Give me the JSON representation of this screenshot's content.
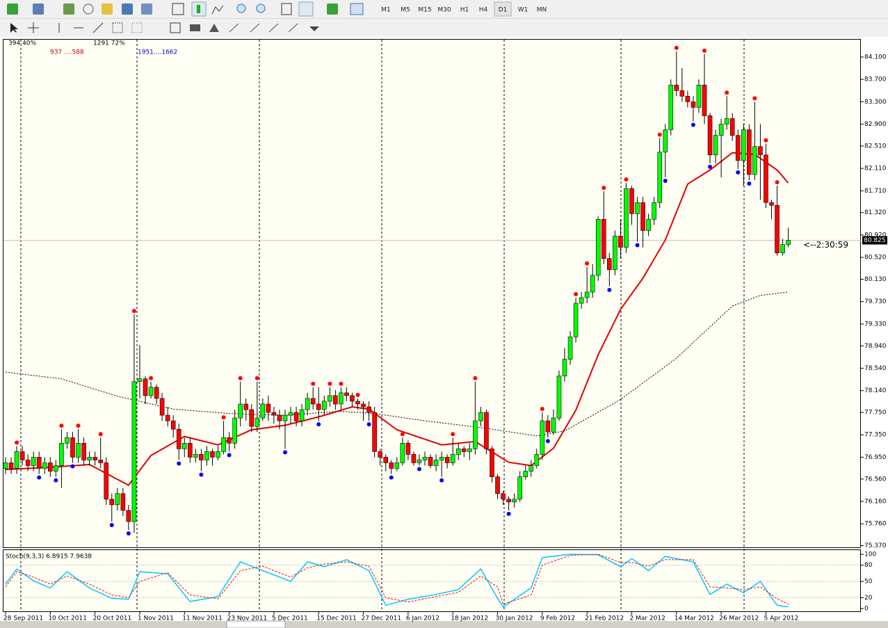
{
  "toolbar": {
    "timeframes": [
      "M1",
      "M5",
      "M15",
      "M30",
      "H1",
      "H4",
      "D1",
      "W1",
      "MN"
    ],
    "active": 6
  },
  "chart_data": [
    {
      "type": "candlestick",
      "info": [
        {
          "text": "394 40%",
          "color": "#000000"
        },
        {
          "text": "937 ....588",
          "color": "#cc0000"
        },
        {
          "text": "1291 72%",
          "color": "#000000"
        },
        {
          "text": "1951....1662",
          "color": "#0000cc"
        }
      ],
      "categories": [
        "28 Sep 2011",
        null,
        null,
        null,
        null,
        null,
        null,
        null,
        "10 Oct 2011",
        null,
        null,
        null,
        null,
        null,
        null,
        null,
        "20 Oct 2011",
        null,
        null,
        null,
        null,
        null,
        null,
        null,
        "1 Nov 2011",
        null,
        null,
        null,
        null,
        null,
        null,
        null,
        "11 Nov 2011",
        null,
        null,
        null,
        null,
        null,
        null,
        null,
        "23 Nov 2011",
        null,
        null,
        null,
        null,
        null,
        null,
        null,
        "5 Dec 2011",
        null,
        null,
        null,
        null,
        null,
        null,
        null,
        "15 Dec 2011",
        null,
        null,
        null,
        null,
        null,
        null,
        null,
        "27 Dec 2011",
        null,
        null,
        null,
        null,
        null,
        null,
        null,
        "6 Jan 2012",
        null,
        null,
        null,
        null,
        null,
        null,
        null,
        "18 Jan 2012",
        null,
        null,
        null,
        null,
        null,
        null,
        null,
        "30 Jan 2012",
        null,
        null,
        null,
        null,
        null,
        null,
        null,
        "9 Feb 2012",
        null,
        null,
        null,
        null,
        null,
        null,
        null,
        "21 Feb 2012",
        null,
        null,
        null,
        null,
        null,
        null,
        null,
        "2 Mar 2012",
        null,
        null,
        null,
        null,
        null,
        null,
        null,
        "14 Mar 2012",
        null,
        null,
        null,
        null,
        null,
        null,
        null,
        "26 Mar 2012",
        null,
        null,
        null,
        null,
        null,
        null,
        null,
        "5 Apr 2012",
        null,
        null,
        null,
        null
      ],
      "open": [
        76.75,
        76.85,
        76.75,
        77.05,
        76.9,
        76.8,
        76.95,
        76.75,
        76.85,
        76.7,
        76.8,
        77.2,
        77.3,
        76.95,
        77.2,
        76.9,
        76.95,
        76.9,
        76.85,
        76.2,
        76.1,
        76.3,
        76.0,
        75.8,
        78.3,
        78.35,
        78.05,
        78.2,
        78.0,
        77.7,
        77.6,
        77.45,
        77.1,
        77.2,
        76.95,
        77.0,
        76.9,
        77.05,
        76.95,
        77.05,
        77.3,
        77.2,
        77.65,
        77.9,
        77.8,
        77.5,
        77.65,
        77.9,
        77.75,
        77.7,
        77.6,
        77.7,
        77.75,
        77.6,
        77.8,
        78.0,
        77.9,
        77.8,
        77.95,
        78.05,
        77.9,
        78.1,
        78.05,
        77.95,
        77.9,
        77.85,
        77.75,
        77.05,
        76.95,
        76.85,
        76.75,
        76.85,
        77.2,
        77.0,
        76.85,
        76.9,
        76.95,
        76.8,
        76.9,
        76.95,
        76.85,
        77.0,
        77.1,
        77.05,
        77.1,
        77.6,
        77.75,
        77.1,
        76.6,
        76.3,
        76.2,
        76.15,
        76.2,
        76.6,
        76.7,
        76.8,
        77.0,
        77.6,
        77.4,
        77.65,
        78.4,
        78.7,
        79.1,
        79.7,
        79.8,
        79.9,
        80.2,
        81.2,
        80.5,
        80.3,
        80.9,
        80.7,
        81.75,
        81.3,
        81.5,
        81.0,
        81.2,
        81.5,
        82.4,
        82.8,
        83.6,
        83.5,
        83.4,
        83.3,
        83.2,
        83.6,
        83.05,
        82.35,
        82.7,
        82.9,
        83.0,
        82.7,
        82.25,
        82.8,
        82.0,
        82.5,
        82.35,
        81.5,
        81.45,
        80.6,
        80.75
      ],
      "high": [
        76.95,
        76.95,
        77.15,
        77.15,
        77.0,
        77.05,
        77.05,
        76.95,
        76.95,
        76.9,
        77.45,
        77.4,
        77.4,
        77.45,
        77.3,
        77.05,
        77.05,
        77.3,
        76.95,
        76.3,
        76.4,
        76.4,
        76.1,
        79.5,
        78.95,
        78.4,
        78.3,
        78.25,
        78.1,
        77.85,
        77.7,
        77.55,
        77.3,
        77.3,
        77.1,
        77.1,
        77.15,
        77.1,
        77.15,
        77.6,
        77.4,
        77.8,
        78.3,
        78.0,
        77.9,
        78.3,
        78.0,
        78.05,
        77.85,
        77.8,
        77.8,
        77.85,
        77.85,
        77.9,
        78.1,
        78.2,
        78.2,
        78.05,
        78.2,
        78.15,
        78.2,
        78.2,
        78.1,
        78.0,
        77.95,
        77.95,
        77.85,
        77.1,
        77.0,
        76.9,
        76.95,
        77.3,
        77.25,
        77.05,
        77.0,
        77.05,
        77.0,
        77.0,
        77.05,
        77.0,
        77.3,
        77.2,
        77.15,
        77.2,
        78.3,
        77.85,
        77.8,
        77.15,
        76.65,
        76.35,
        76.25,
        76.3,
        76.7,
        76.8,
        76.9,
        77.1,
        77.75,
        77.7,
        77.8,
        78.5,
        78.9,
        79.2,
        79.8,
        79.9,
        80.35,
        80.4,
        81.25,
        81.7,
        80.6,
        81.0,
        81.2,
        81.85,
        81.8,
        81.6,
        81.6,
        81.3,
        81.6,
        82.65,
        82.9,
        83.7,
        84.2,
        83.9,
        83.5,
        83.4,
        83.7,
        84.15,
        83.1,
        82.8,
        83.0,
        83.4,
        83.1,
        82.8,
        82.9,
        82.9,
        83.3,
        82.9,
        82.55,
        81.55,
        81.8,
        80.85,
        81.05
      ],
      "low": [
        76.65,
        76.65,
        76.65,
        76.8,
        76.7,
        76.7,
        76.65,
        76.65,
        76.6,
        76.6,
        76.4,
        77.1,
        76.85,
        76.85,
        76.8,
        76.8,
        76.8,
        76.75,
        76.1,
        75.8,
        76.0,
        75.9,
        75.65,
        75.6,
        78.0,
        77.9,
        78.0,
        77.9,
        77.6,
        77.5,
        77.3,
        76.9,
        76.95,
        76.85,
        76.85,
        76.7,
        76.8,
        76.8,
        76.9,
        77.0,
        77.05,
        77.1,
        77.5,
        77.6,
        77.4,
        77.4,
        77.6,
        77.6,
        77.55,
        77.45,
        77.1,
        77.55,
        77.5,
        77.5,
        77.7,
        77.8,
        77.6,
        77.7,
        77.85,
        77.8,
        77.8,
        77.95,
        77.85,
        77.8,
        77.6,
        77.6,
        76.95,
        76.8,
        76.7,
        76.65,
        76.7,
        76.8,
        76.9,
        76.8,
        76.8,
        76.8,
        76.75,
        76.7,
        76.6,
        76.75,
        76.8,
        76.9,
        76.95,
        76.9,
        77.0,
        77.5,
        77.0,
        76.5,
        76.2,
        76.1,
        76.0,
        76.05,
        76.15,
        76.55,
        76.6,
        76.75,
        76.9,
        77.3,
        77.35,
        77.6,
        78.3,
        78.6,
        79.0,
        79.6,
        79.7,
        79.8,
        80.1,
        80.4,
        80.0,
        80.2,
        80.5,
        80.6,
        81.1,
        80.8,
        80.7,
        80.9,
        81.1,
        81.4,
        81.95,
        82.7,
        83.4,
        83.3,
        83.2,
        82.95,
        83.1,
        82.9,
        82.2,
        82.2,
        81.95,
        82.8,
        82.6,
        82.1,
        81.8,
        81.9,
        81.9,
        81.55,
        81.4,
        81.2,
        80.55,
        80.55,
        80.7
      ],
      "close": [
        76.85,
        76.75,
        77.05,
        76.9,
        76.8,
        76.95,
        76.75,
        76.85,
        76.7,
        76.8,
        77.2,
        77.3,
        76.95,
        77.2,
        76.9,
        76.95,
        76.9,
        76.85,
        76.2,
        76.1,
        76.3,
        76.0,
        75.8,
        78.3,
        78.35,
        78.05,
        78.2,
        78.0,
        77.7,
        77.6,
        77.45,
        77.1,
        77.2,
        76.95,
        77.0,
        76.9,
        77.05,
        76.95,
        77.05,
        77.3,
        77.2,
        77.65,
        77.9,
        77.8,
        77.5,
        77.65,
        77.9,
        77.75,
        77.7,
        77.6,
        77.7,
        77.75,
        77.6,
        77.8,
        78.0,
        77.9,
        77.8,
        77.95,
        78.05,
        77.9,
        78.1,
        78.05,
        77.95,
        77.9,
        77.85,
        77.75,
        77.05,
        76.95,
        76.85,
        76.75,
        76.85,
        77.2,
        77.0,
        76.85,
        76.9,
        76.95,
        76.8,
        76.9,
        76.95,
        76.85,
        77.0,
        77.1,
        77.05,
        77.1,
        77.6,
        77.75,
        77.1,
        76.6,
        76.3,
        76.2,
        76.15,
        76.2,
        76.6,
        76.7,
        76.8,
        77.0,
        77.6,
        77.4,
        77.65,
        78.4,
        78.7,
        79.1,
        79.7,
        79.8,
        79.9,
        80.2,
        81.2,
        80.5,
        80.3,
        80.9,
        80.7,
        81.75,
        81.3,
        81.5,
        81.0,
        81.2,
        81.5,
        82.4,
        82.8,
        83.6,
        83.5,
        83.4,
        83.3,
        83.2,
        83.6,
        83.05,
        82.35,
        82.7,
        82.9,
        83.0,
        82.7,
        82.25,
        82.8,
        82.0,
        82.5,
        82.35,
        81.5,
        81.45,
        80.6,
        80.75,
        80.825
      ],
      "up_color": "#00ff00",
      "down_color": "#ff0000",
      "ylim": [
        75.34,
        84.41
      ],
      "yticks": [
        {
          "value": 84.1,
          "label": "84.100"
        },
        {
          "value": 83.7,
          "label": "83.700"
        },
        {
          "value": 83.3,
          "label": "83.300"
        },
        {
          "value": 82.9,
          "label": "82.900"
        },
        {
          "value": 82.51,
          "label": "82.510"
        },
        {
          "value": 82.11,
          "label": "82.110"
        },
        {
          "value": 81.71,
          "label": "81.710"
        },
        {
          "value": 81.32,
          "label": "81.320"
        },
        {
          "value": 80.92,
          "label": "80.920"
        },
        {
          "value": 80.52,
          "label": "80.520"
        },
        {
          "value": 80.13,
          "label": "80.130"
        },
        {
          "value": 79.73,
          "label": "79.730"
        },
        {
          "value": 79.33,
          "label": "79.330"
        },
        {
          "value": 78.94,
          "label": "78.940"
        },
        {
          "value": 78.54,
          "label": "78.540"
        },
        {
          "value": 78.14,
          "label": "78.140"
        },
        {
          "value": 77.75,
          "label": "77.750"
        },
        {
          "value": 77.35,
          "label": "77.350"
        },
        {
          "value": 76.95,
          "label": "76.950"
        },
        {
          "value": 76.56,
          "label": "76.560"
        },
        {
          "value": 76.16,
          "label": "76.160"
        },
        {
          "value": 75.76,
          "label": "75.760"
        },
        {
          "value": 75.37,
          "label": "75.370"
        }
      ],
      "bid": {
        "value": 80.825,
        "label": "80.825"
      },
      "annotation": "<--2:30:59",
      "overlays": [
        {
          "color": "#e00000",
          "dash": false,
          "x": [
            0,
            8,
            15,
            22,
            26,
            32,
            38,
            44,
            50,
            56,
            62,
            65,
            70,
            78,
            84,
            90,
            94,
            98,
            102,
            106,
            110,
            114,
            118,
            122,
            126,
            130,
            134,
            138,
            140
          ],
          "values": [
            76.73,
            76.77,
            76.82,
            76.45,
            76.98,
            77.32,
            77.17,
            77.44,
            77.52,
            77.67,
            77.85,
            77.81,
            77.44,
            77.17,
            77.23,
            76.86,
            76.8,
            77.11,
            77.79,
            78.78,
            79.59,
            80.15,
            80.83,
            81.83,
            82.08,
            82.39,
            82.36,
            82.08,
            81.85
          ]
        },
        {
          "color": "#000000",
          "dash": true,
          "x": [
            0,
            10,
            20,
            30,
            40,
            50,
            60,
            66,
            75,
            85,
            95,
            100,
            110,
            120,
            130,
            135,
            140
          ],
          "values": [
            78.47,
            78.35,
            78.04,
            77.81,
            77.73,
            77.7,
            77.77,
            77.73,
            77.6,
            77.48,
            77.33,
            77.42,
            77.98,
            78.72,
            79.65,
            79.84,
            79.9
          ]
        }
      ],
      "fractals_up": [
        2,
        10,
        13,
        17,
        23,
        26,
        39,
        42,
        45,
        55,
        58,
        60,
        63,
        71,
        80,
        84,
        96,
        102,
        104,
        107,
        111,
        117,
        120,
        125,
        129,
        134,
        136,
        138
      ],
      "fractals_down": [
        6,
        9,
        12,
        19,
        22,
        31,
        35,
        40,
        50,
        56,
        65,
        69,
        74,
        78,
        90,
        97,
        108,
        113,
        118,
        123,
        126,
        131,
        133
      ],
      "fractal_up_color": "#ff0000",
      "fractal_down_color": "#0000ff"
    },
    {
      "type": "line",
      "title": "Stoch(9,3,3) 6.8915 7.9638",
      "ylim": [
        -6.4,
        107.7
      ],
      "yticks": [
        0,
        20,
        50,
        80,
        100
      ],
      "levels": [
        20,
        50,
        80
      ],
      "series": [
        {
          "color": "#00c8ff",
          "dash": false,
          "x": [
            0,
            2,
            5,
            8,
            11,
            15,
            19,
            22,
            24,
            29,
            33,
            38,
            42,
            46,
            51,
            54,
            57,
            61,
            65,
            68,
            72,
            77,
            81,
            85,
            88,
            89,
            94,
            96,
            101,
            106,
            110,
            112,
            115,
            118,
            123,
            126,
            129,
            132,
            135,
            138,
            140
          ],
          "values": [
            45,
            73,
            51,
            38,
            68,
            38,
            19,
            17,
            68,
            64,
            13,
            22,
            86,
            70,
            50,
            86,
            77,
            90,
            70,
            6,
            17,
            26,
            35,
            73,
            19,
            3,
            38,
            94,
            100,
            99,
            77,
            92,
            70,
            96,
            86,
            26,
            45,
            29,
            50,
            6,
            3
          ]
        },
        {
          "color": "#ff0000",
          "dash": true,
          "x": [
            0,
            2,
            5,
            8,
            11,
            15,
            19,
            22,
            24,
            29,
            33,
            38,
            42,
            46,
            51,
            54,
            57,
            61,
            65,
            68,
            72,
            77,
            81,
            85,
            88,
            89,
            94,
            96,
            101,
            106,
            110,
            112,
            115,
            118,
            123,
            126,
            129,
            132,
            135,
            138,
            140
          ],
          "values": [
            40,
            68,
            58,
            45,
            60,
            45,
            25,
            20,
            50,
            66,
            25,
            18,
            70,
            78,
            58,
            75,
            82,
            86,
            78,
            20,
            12,
            22,
            30,
            60,
            40,
            8,
            25,
            80,
            98,
            100,
            85,
            85,
            78,
            90,
            90,
            40,
            38,
            35,
            40,
            18,
            8
          ]
        }
      ]
    }
  ]
}
